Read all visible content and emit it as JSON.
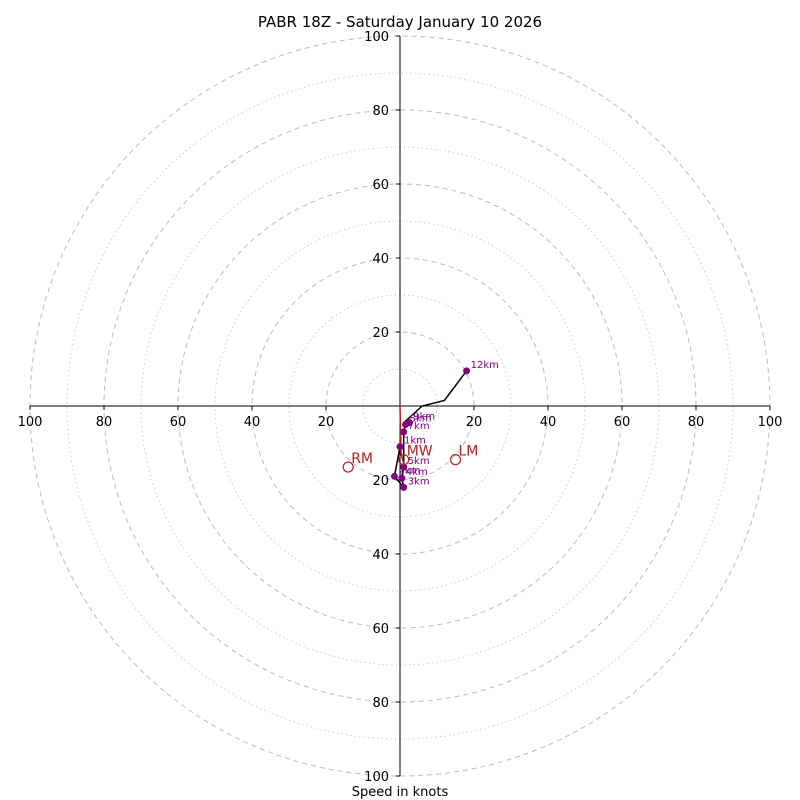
{
  "chart_data": {
    "type": "hodograph",
    "title": "PABR 18Z - Saturday January 10 2026",
    "xlabel": "Speed in knots",
    "max_speed": 100,
    "ring_step": 10,
    "labeled_ticks": [
      20,
      40,
      60,
      80,
      100
    ],
    "x_tick_labels": [
      "100",
      "80",
      "60",
      "40",
      "20",
      "20",
      "40",
      "60",
      "80",
      "100"
    ],
    "y_tick_labels": [
      "100",
      "80",
      "60",
      "40",
      "20",
      "20",
      "40",
      "60",
      "80",
      "100"
    ],
    "colors": {
      "profile": "#000000",
      "points": "#800080",
      "labels": "#800080",
      "motion": "#b22222",
      "ring_major": "#bbbbbb",
      "ring_minor": "#cccccc"
    },
    "profile": [
      {
        "u": 0.0,
        "v": -11.0,
        "label": "1km"
      },
      {
        "u": -1.5,
        "v": -19.0,
        "label": "2km"
      },
      {
        "u": 1.0,
        "v": -22.0,
        "label": "3km"
      },
      {
        "u": 0.5,
        "v": -19.5,
        "label": "4km"
      },
      {
        "u": 1.0,
        "v": -16.5,
        "label": "5km"
      },
      {
        "u": 1.0,
        "v": -7.0,
        "label": "7km"
      },
      {
        "u": 1.5,
        "v": -5.0,
        "label": "8km"
      },
      {
        "u": 2.5,
        "v": -4.5,
        "label": "9km"
      },
      {
        "u": 18.0,
        "v": 9.5,
        "label": "12km"
      }
    ],
    "extra_line": [
      {
        "u": 18.0,
        "v": 9.5
      },
      {
        "u": 12.0,
        "v": 1.5
      },
      {
        "u": 6.0,
        "v": 0.0
      },
      {
        "u": 1.0,
        "v": -4.5
      }
    ],
    "storm_motions": [
      {
        "label": "RM",
        "u": -14.0,
        "v": -16.5
      },
      {
        "label": "LM",
        "u": 15.0,
        "v": -14.5
      },
      {
        "label": "MW",
        "u": 1.0,
        "v": -14.5
      }
    ],
    "motion_line": [
      {
        "u": 0.0,
        "v": 0.0
      },
      {
        "u": 0.3,
        "v": -13.0
      },
      {
        "u": 1.0,
        "v": -15.5
      }
    ]
  }
}
